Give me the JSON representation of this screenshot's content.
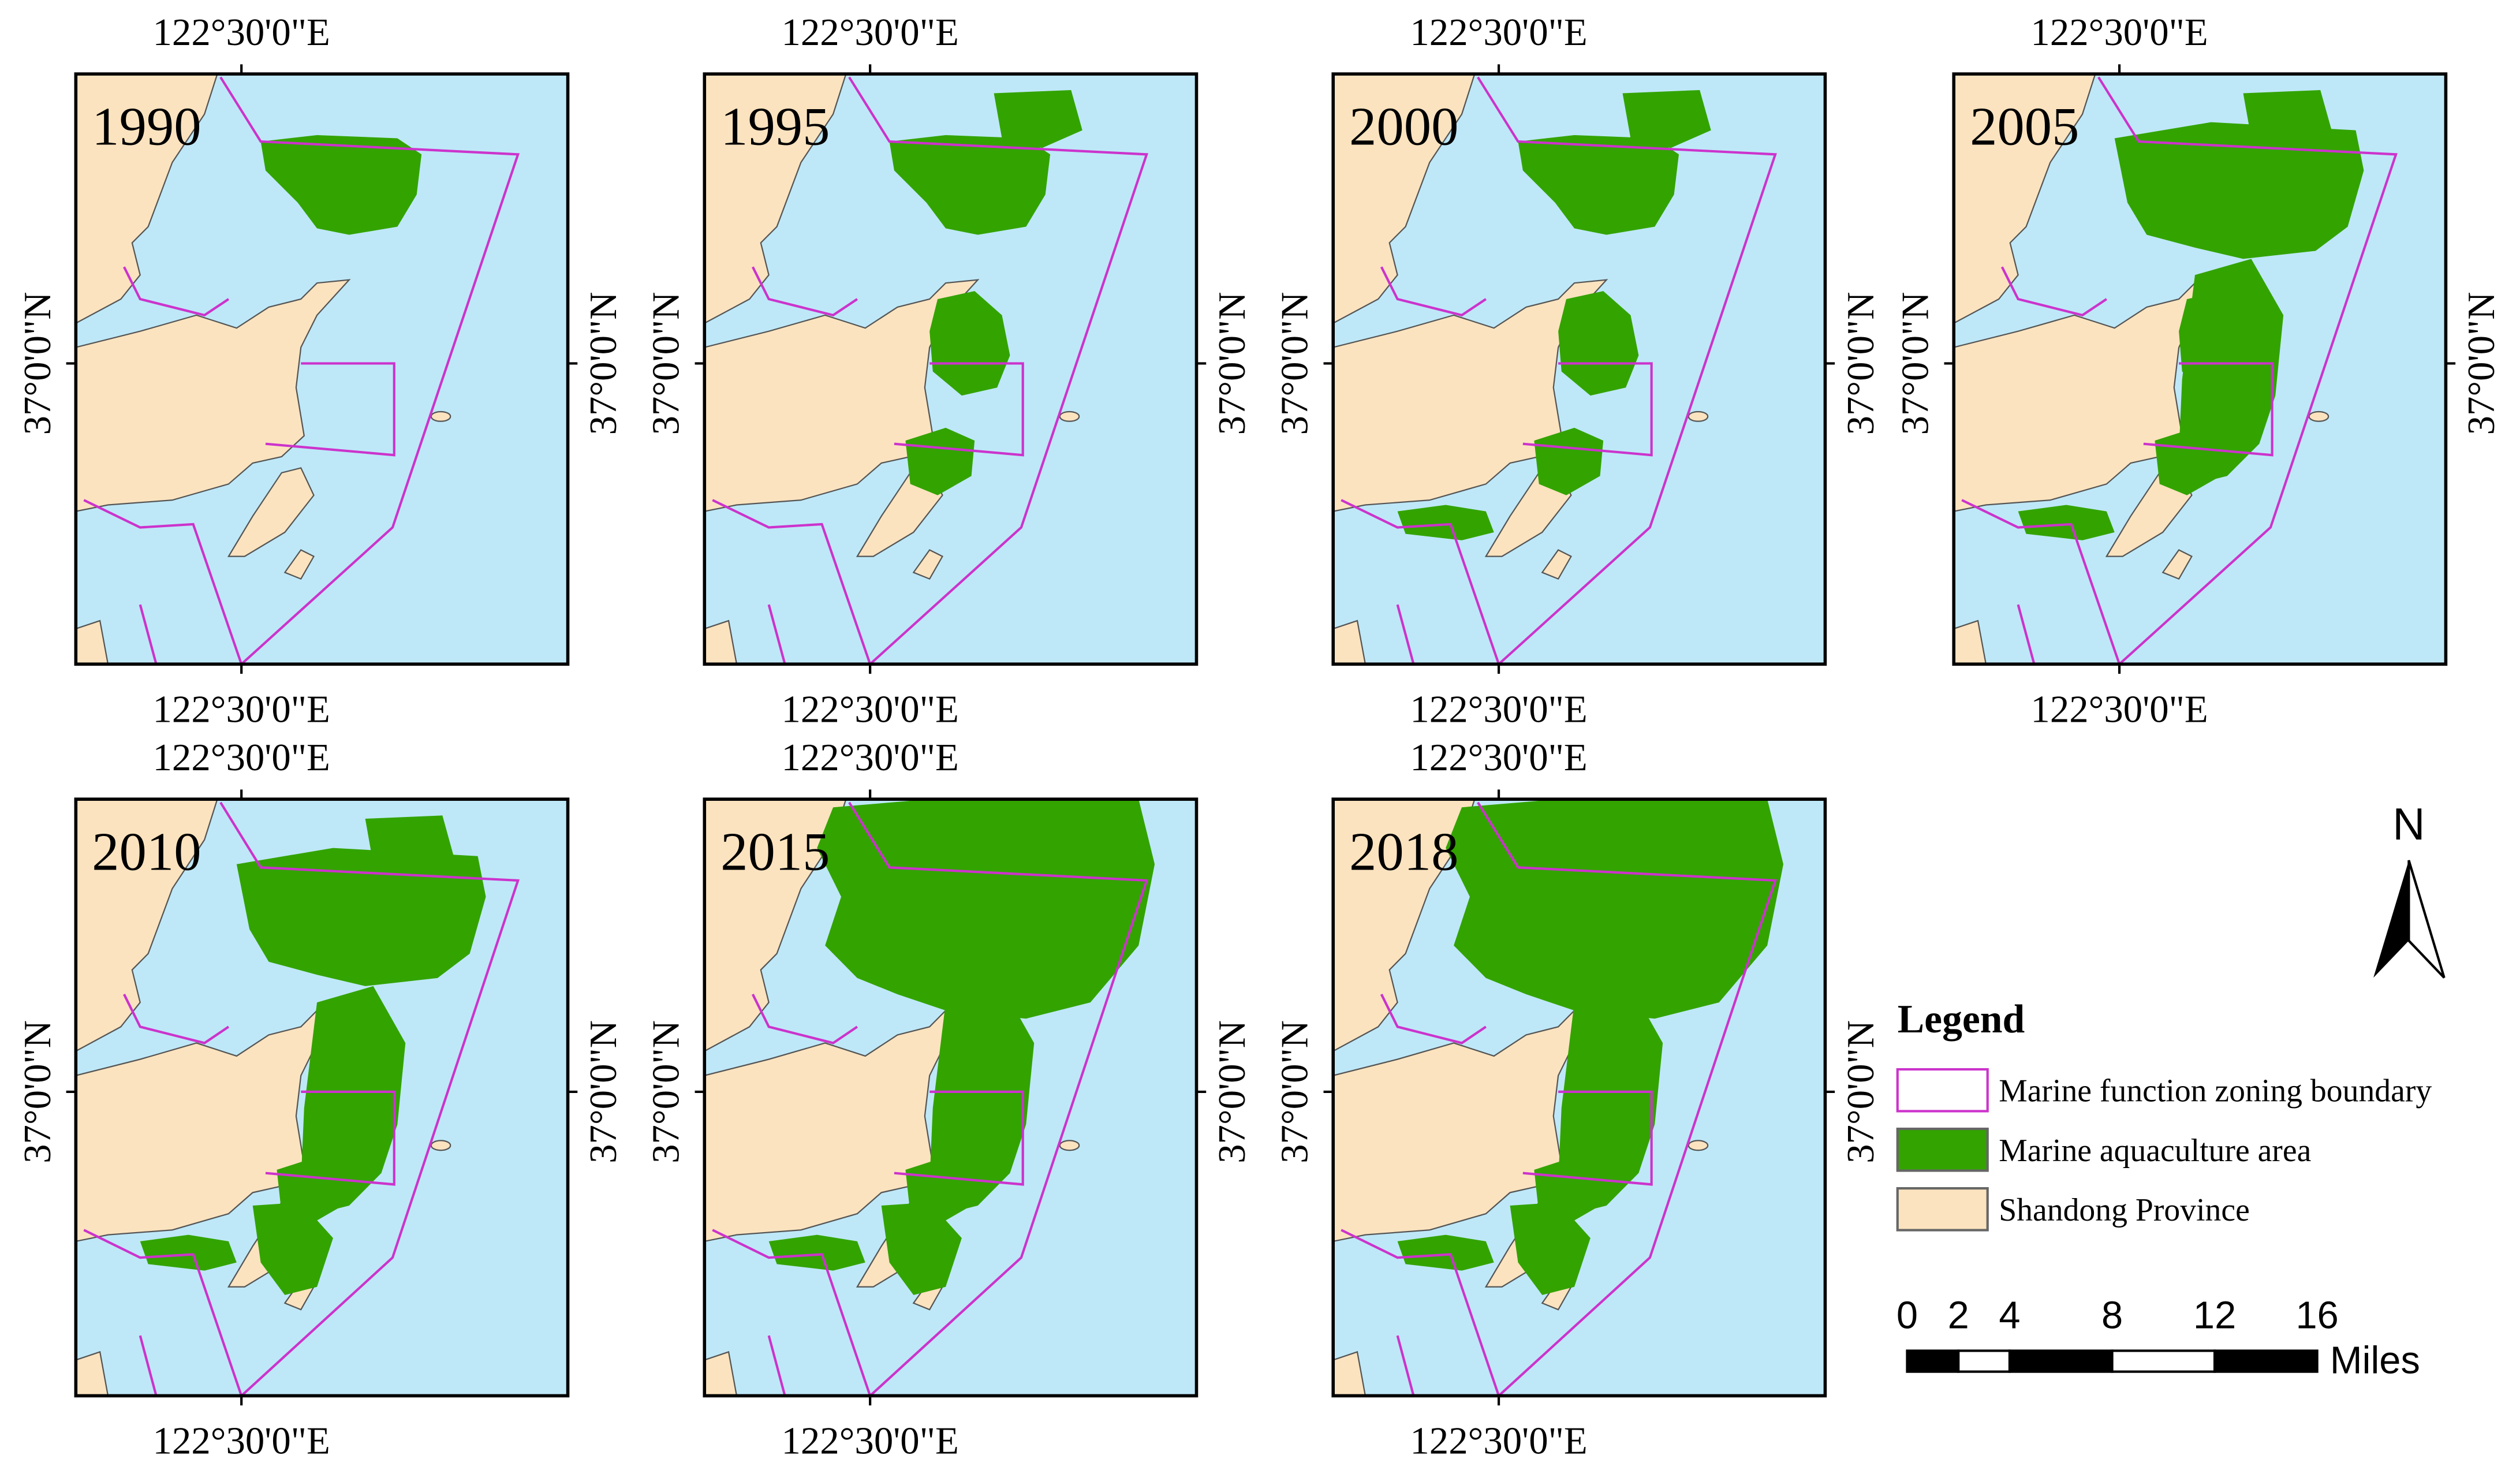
{
  "map": {
    "panels": [
      {
        "year": "1990"
      },
      {
        "year": "1995"
      },
      {
        "year": "2000"
      },
      {
        "year": "2005"
      },
      {
        "year": "2010"
      },
      {
        "year": "2015"
      },
      {
        "year": "2018"
      }
    ],
    "longitude_label": "122°30'0\"E",
    "latitude_label": "37°0'0\"N",
    "legend": {
      "title": "Legend",
      "items": [
        "Marine function zoning boundary",
        "Marine aquaculture area",
        "Shandong Province"
      ]
    },
    "north_arrow": "N",
    "scale_bar": {
      "ticks": [
        0,
        2,
        4,
        8,
        12,
        16
      ],
      "unit": "Miles"
    }
  }
}
